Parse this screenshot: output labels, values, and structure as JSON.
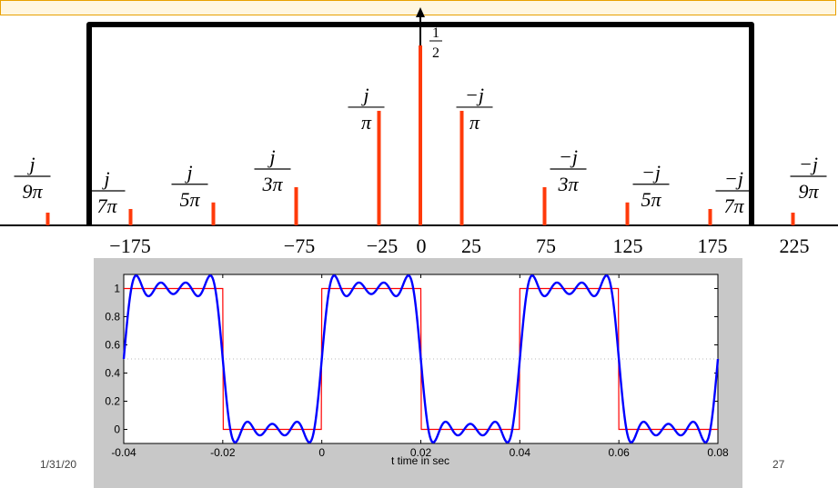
{
  "spectrum": {
    "freq_ticks": [
      "−175",
      "−75",
      "−25",
      "0",
      "25",
      "75",
      "125",
      "175",
      "225"
    ],
    "dc_label": {
      "num": "1",
      "den": "2"
    },
    "lines": [
      {
        "freq": -225,
        "amplitude": 0.0354,
        "num": "j",
        "den": "9π"
      },
      {
        "freq": -175,
        "amplitude": 0.0455,
        "num": "j",
        "den": "7π"
      },
      {
        "freq": -125,
        "amplitude": 0.0637,
        "num": "j",
        "den": "5π"
      },
      {
        "freq": -75,
        "amplitude": 0.1061,
        "num": "j",
        "den": "3π"
      },
      {
        "freq": -25,
        "amplitude": 0.3183,
        "num": "j",
        "den": "π"
      },
      {
        "freq": 0,
        "amplitude": 0.5,
        "num": "",
        "den": ""
      },
      {
        "freq": 25,
        "amplitude": 0.3183,
        "num": "−j",
        "den": "π"
      },
      {
        "freq": 75,
        "amplitude": 0.1061,
        "num": "−j",
        "den": "3π"
      },
      {
        "freq": 125,
        "amplitude": 0.0637,
        "num": "−j",
        "den": "5π"
      },
      {
        "freq": 175,
        "amplitude": 0.0455,
        "num": "−j",
        "den": "7π"
      },
      {
        "freq": 225,
        "amplitude": 0.0354,
        "num": "−j",
        "den": "9π"
      }
    ],
    "colors": {
      "line": "#ff3a0a",
      "filter": "#000000"
    },
    "filter_passband": [
      -200,
      200
    ]
  },
  "chart_data": {
    "type": "line",
    "title": "",
    "xlabel": "t time in sec",
    "ylabel": "",
    "xlim": [
      -0.04,
      0.08
    ],
    "ylim": [
      -0.1,
      1.1
    ],
    "x_ticks": [
      "-0.04",
      "-0.02",
      "0",
      "0.02",
      "0.04",
      "0.06",
      "0.08"
    ],
    "y_ticks": [
      "0",
      "0.2",
      "0.4",
      "0.6",
      "0.8",
      "1"
    ],
    "series": [
      {
        "color": "#ff0000",
        "kind": "square wave",
        "period": 0.04,
        "low": 0,
        "high": 1
      },
      {
        "color": "#0000ff",
        "kind": "sum of harmonics",
        "dc": 0.5,
        "harmonics_hz": [
          25,
          75,
          125,
          175
        ]
      }
    ],
    "reference_line": 0.5
  },
  "footer": {
    "date": "1/31/20",
    "page": "27"
  }
}
